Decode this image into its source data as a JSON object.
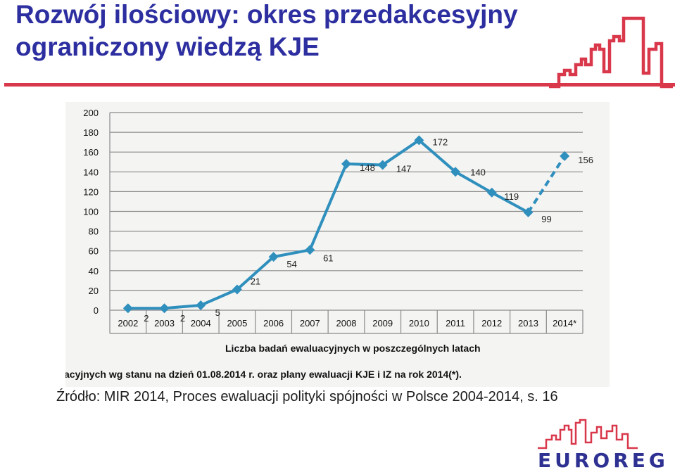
{
  "slide": {
    "title_line1": "Rozwój ilościowy: okres przedakcesyjny",
    "title_line2": "ograniczony wiedzą KJE",
    "source": "Źródło: MIR 2014, Proces ewaluacji polityki spójności w Polsce 2004-2014, s. 16",
    "logo_text": "EUROREG",
    "accent_color": "#d9374a",
    "title_color": "#2d2fa0",
    "series_color": "#2f8fbd"
  },
  "chart_data": {
    "type": "line",
    "title": "Liczba badań ewaluacyjnych w poszczególnych latach",
    "caption": "acyjnych wg stanu na dzień 01.08.2014 r. oraz plany ewaluacji KJE i IZ na rok 2014(*).",
    "xlabel": "",
    "ylabel": "",
    "categories": [
      "2002",
      "2003",
      "2004",
      "2005",
      "2006",
      "2007",
      "2008",
      "2009",
      "2010",
      "2011",
      "2012",
      "2013",
      "2014*"
    ],
    "series": [
      {
        "name": "Liczba badań ewaluacyjnych",
        "values": [
          2,
          2,
          5,
          21,
          54,
          61,
          148,
          147,
          172,
          140,
          119,
          99,
          156
        ],
        "projected_from_index": 11
      }
    ],
    "data_labels": [
      "2",
      "2",
      "5",
      "21",
      "54",
      "61",
      "148",
      "147",
      "172",
      "140",
      "119",
      "99",
      "156"
    ],
    "yticks": [
      "0",
      "20",
      "40",
      "60",
      "80",
      "100",
      "120",
      "140",
      "160",
      "180",
      "200"
    ],
    "ylim": [
      0,
      200
    ],
    "grid": true
  }
}
